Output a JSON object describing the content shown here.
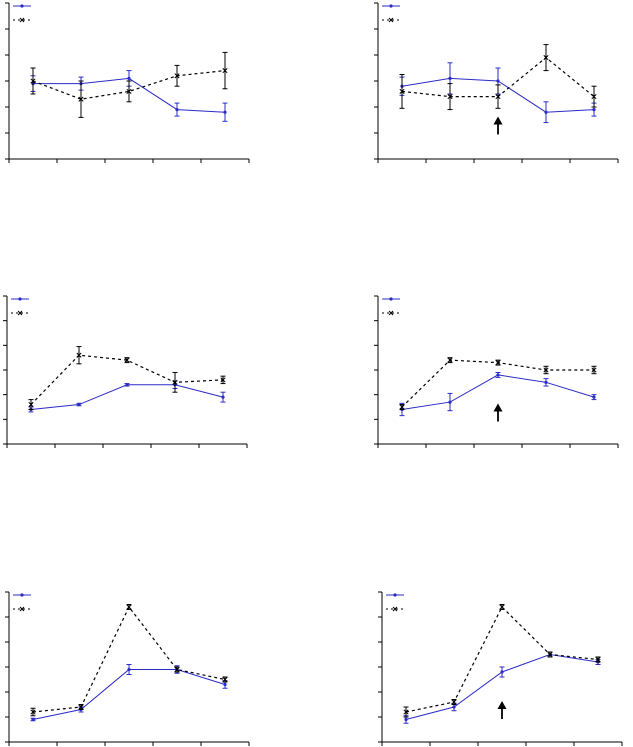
{
  "chart_data": [
    {
      "type": "line",
      "x": [
        1,
        2,
        3,
        4,
        5
      ],
      "ylim": [
        0,
        6
      ],
      "y_ticks": 7,
      "x_ticks": 6,
      "series": [
        {
          "values": [
            2.9,
            2.9,
            3.1,
            1.9,
            1.8
          ],
          "err": [
            0.3,
            0.25,
            0.3,
            0.25,
            0.35
          ],
          "color": "#2b2bc8",
          "style": "solid"
        },
        {
          "values": [
            3.0,
            2.3,
            2.6,
            3.2,
            3.4
          ],
          "err": [
            0.5,
            0.7,
            0.4,
            0.4,
            0.7
          ],
          "color": "#000000",
          "style": "dashed"
        }
      ],
      "legend": "top-left",
      "arrow_at_x": null
    },
    {
      "type": "line",
      "x": [
        1,
        2,
        3,
        4,
        5
      ],
      "ylim": [
        0,
        6
      ],
      "y_ticks": 7,
      "x_ticks": 6,
      "series": [
        {
          "values": [
            2.8,
            3.1,
            3.0,
            1.8,
            1.9
          ],
          "err": [
            0.35,
            0.6,
            0.5,
            0.4,
            0.25
          ],
          "color": "#2b2bc8",
          "style": "solid"
        },
        {
          "values": [
            2.6,
            2.4,
            2.4,
            3.9,
            2.4
          ],
          "err": [
            0.65,
            0.5,
            0.45,
            0.5,
            0.4
          ],
          "color": "#000000",
          "style": "dashed"
        }
      ],
      "legend": "top-left",
      "arrow_at_x": 3
    },
    {
      "type": "line",
      "x": [
        1,
        2,
        3,
        4,
        5
      ],
      "ylim": [
        0,
        6
      ],
      "y_ticks": 7,
      "x_ticks": 6,
      "series": [
        {
          "values": [
            1.4,
            1.6,
            2.4,
            2.4,
            1.9
          ],
          "err": [
            0.1,
            0.05,
            0.05,
            0.15,
            0.2
          ],
          "color": "#2b2bc8",
          "style": "solid"
        },
        {
          "values": [
            1.6,
            3.6,
            3.4,
            2.5,
            2.6
          ],
          "err": [
            0.2,
            0.35,
            0.1,
            0.4,
            0.15
          ],
          "color": "#000000",
          "style": "dashed"
        }
      ],
      "legend": "top-left",
      "arrow_at_x": null
    },
    {
      "type": "line",
      "x": [
        1,
        2,
        3,
        4,
        5
      ],
      "ylim": [
        0,
        6
      ],
      "y_ticks": 7,
      "x_ticks": 6,
      "series": [
        {
          "values": [
            1.4,
            1.7,
            2.8,
            2.5,
            1.9
          ],
          "err": [
            0.25,
            0.35,
            0.1,
            0.15,
            0.1
          ],
          "color": "#2b2bc8",
          "style": "solid"
        },
        {
          "values": [
            1.5,
            3.4,
            3.3,
            3.0,
            3.0
          ],
          "err": [
            0.1,
            0.1,
            0.1,
            0.15,
            0.15
          ],
          "color": "#000000",
          "style": "dashed"
        }
      ],
      "legend": "top-left",
      "arrow_at_x": 3
    },
    {
      "type": "line",
      "x": [
        1,
        2,
        3,
        4,
        5
      ],
      "ylim": [
        0,
        6
      ],
      "y_ticks": 7,
      "x_ticks": 6,
      "series": [
        {
          "values": [
            0.9,
            1.3,
            2.9,
            2.9,
            2.3
          ],
          "err": [
            0.05,
            0.1,
            0.2,
            0.15,
            0.15
          ],
          "color": "#2b2bc8",
          "style": "solid"
        },
        {
          "values": [
            1.2,
            1.4,
            5.4,
            2.9,
            2.5
          ],
          "err": [
            0.15,
            0.1,
            0.1,
            0.1,
            0.1
          ],
          "color": "#000000",
          "style": "dashed"
        }
      ],
      "legend": "top-left",
      "arrow_at_x": null
    },
    {
      "type": "line",
      "x": [
        1,
        2,
        3,
        4,
        5
      ],
      "ylim": [
        0,
        6
      ],
      "y_ticks": 7,
      "x_ticks": 6,
      "series": [
        {
          "values": [
            0.9,
            1.4,
            2.8,
            3.5,
            3.2
          ],
          "err": [
            0.15,
            0.15,
            0.2,
            0.1,
            0.1
          ],
          "color": "#2b2bc8",
          "style": "solid"
        },
        {
          "values": [
            1.2,
            1.6,
            5.4,
            3.5,
            3.3
          ],
          "err": [
            0.2,
            0.1,
            0.1,
            0.1,
            0.1
          ],
          "color": "#000000",
          "style": "dashed"
        }
      ],
      "legend": "top-left",
      "arrow_at_x": 3
    }
  ]
}
